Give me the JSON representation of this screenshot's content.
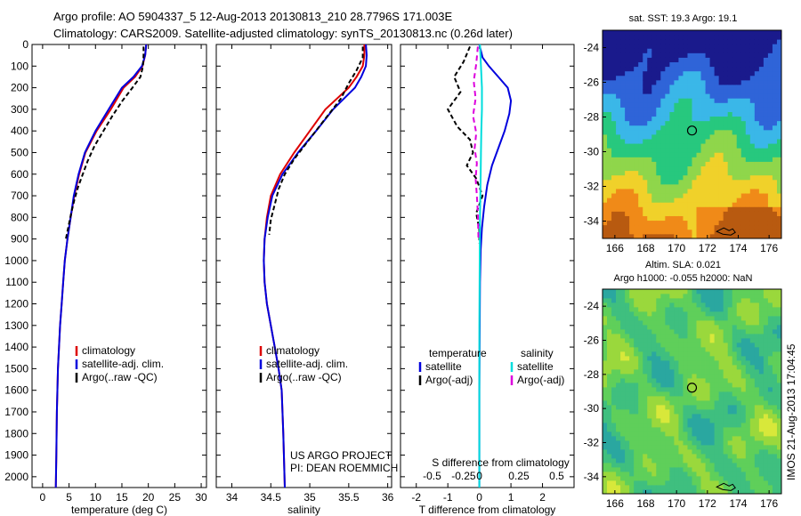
{
  "header": {
    "line1": "Argo profile: AO 5904337_5 12-Aug-2013 20130813_210 28.7796S 171.003E",
    "line2": "Climatology: CARS2009. Satellite-adjusted climatology: synTS_20130813.nc (0.26d later)"
  },
  "side_stamp": "IMOS 21-Aug-2013 17:04:45",
  "colors": {
    "climatology": "#dd0000",
    "satellite": "#0000dd",
    "argo": "#000000",
    "sat_salinity": "#00dddd",
    "argo_salinity": "#dd00dd"
  },
  "chart_data": [
    {
      "type": "line",
      "xlabel": "temperature (deg C)",
      "ylabel": "",
      "xlim": [
        -2,
        31
      ],
      "ylim": [
        2050,
        0
      ],
      "xticks": [
        "0",
        "5",
        "10",
        "15",
        "20",
        "25",
        "30"
      ],
      "xtick_values": [
        0,
        5,
        10,
        15,
        20,
        25,
        30
      ],
      "yticks": [
        "0",
        "100",
        "200",
        "300",
        "400",
        "500",
        "600",
        "700",
        "800",
        "900",
        "1000",
        "1100",
        "1200",
        "1300",
        "1400",
        "1500",
        "1600",
        "1700",
        "1800",
        "1900",
        "2000"
      ],
      "ytick_values": [
        0,
        100,
        200,
        300,
        400,
        500,
        600,
        700,
        800,
        900,
        1000,
        1100,
        1200,
        1300,
        1400,
        1500,
        1600,
        1700,
        1800,
        1900,
        2000
      ],
      "legend": {
        "position": "lower-center",
        "entries": [
          "climatology",
          "satellite-adj. clim.",
          "Argo(..raw -QC)"
        ]
      },
      "series": [
        {
          "name": "climatology",
          "color": "#dd0000",
          "dash": "",
          "x": [
            19.6,
            19.4,
            18.9,
            17.5,
            15.3,
            12.9,
            10.2,
            8.1,
            6.9,
            6.0,
            5.3,
            4.7,
            4.2,
            3.9,
            3.6,
            3.3,
            3.1,
            2.9,
            2.8,
            2.7,
            2.6,
            2.5
          ],
          "y": [
            0,
            50,
            100,
            150,
            200,
            300,
            400,
            500,
            600,
            700,
            800,
            900,
            1000,
            1100,
            1200,
            1300,
            1400,
            1500,
            1600,
            1700,
            1900,
            2050
          ]
        },
        {
          "name": "satellite-adj. clim.",
          "color": "#0000dd",
          "dash": "",
          "x": [
            19.6,
            19.4,
            18.8,
            17.2,
            15.0,
            12.5,
            10.0,
            8.0,
            6.8,
            5.9,
            5.3,
            4.7,
            4.2,
            3.9,
            3.6,
            3.3,
            3.1,
            2.9,
            2.8,
            2.7,
            2.6,
            2.5
          ],
          "y": [
            0,
            50,
            100,
            150,
            200,
            300,
            400,
            500,
            600,
            700,
            800,
            900,
            1000,
            1100,
            1200,
            1300,
            1400,
            1500,
            1600,
            1700,
            1900,
            2050
          ]
        },
        {
          "name": "Argo(..raw -QC)",
          "color": "#000000",
          "dash": "5,3",
          "x": [
            19.1,
            19.1,
            19.0,
            18.5,
            17.0,
            15.1,
            13.2,
            11.5,
            9.8,
            8.5,
            7.6,
            6.7,
            6.0,
            5.4,
            4.9,
            4.4
          ],
          "y": [
            10,
            50,
            100,
            150,
            200,
            260,
            330,
            400,
            470,
            540,
            600,
            660,
            720,
            780,
            840,
            900
          ]
        }
      ]
    },
    {
      "type": "line",
      "xlabel": "salinity",
      "xlim": [
        33.8,
        36.05
      ],
      "ylim": [
        2050,
        0
      ],
      "xticks": [
        "34",
        "34.5",
        "35",
        "35.5",
        "36"
      ],
      "xtick_values": [
        34,
        34.5,
        35,
        35.5,
        36
      ],
      "legend": {
        "position": "lower-center",
        "entries": [
          "climatology",
          "satellite-adj. clim.",
          "Argo(..raw -QC)"
        ]
      },
      "annotations": [
        "US ARGO PROJECT",
        "PI: DEAN ROEMMICH"
      ],
      "series": [
        {
          "name": "climatology",
          "color": "#dd0000",
          "dash": "",
          "x": [
            35.7,
            35.7,
            35.68,
            35.6,
            35.5,
            35.2,
            35.0,
            34.8,
            34.62,
            34.5,
            34.45,
            34.42,
            34.41,
            34.42,
            34.45,
            34.5,
            34.55,
            34.6,
            34.64,
            34.66,
            34.68
          ],
          "y": [
            0,
            50,
            100,
            150,
            200,
            300,
            400,
            500,
            600,
            700,
            800,
            900,
            1000,
            1100,
            1200,
            1300,
            1400,
            1500,
            1600,
            1800,
            2050
          ]
        },
        {
          "name": "satellite-adj. clim.",
          "color": "#0000dd",
          "dash": "",
          "x": [
            35.72,
            35.73,
            35.72,
            35.66,
            35.58,
            35.3,
            35.08,
            34.85,
            34.65,
            34.52,
            34.46,
            34.42,
            34.41,
            34.42,
            34.45,
            34.5,
            34.55,
            34.6,
            34.64,
            34.66,
            34.68
          ],
          "y": [
            0,
            50,
            100,
            150,
            200,
            300,
            400,
            500,
            600,
            700,
            800,
            900,
            1000,
            1100,
            1200,
            1300,
            1400,
            1500,
            1600,
            1800,
            2050
          ]
        },
        {
          "name": "Argo(..raw -QC)",
          "color": "#000000",
          "dash": "5,3",
          "x": [
            35.68,
            35.68,
            35.6,
            35.5,
            35.4,
            35.25,
            35.1,
            34.95,
            34.8,
            34.68,
            34.6,
            34.55,
            34.5,
            34.48
          ],
          "y": [
            10,
            60,
            120,
            180,
            250,
            320,
            390,
            460,
            530,
            600,
            670,
            740,
            810,
            880
          ]
        }
      ]
    },
    {
      "type": "line",
      "xlabel": "T difference from climatology",
      "xlim": [
        -2.5,
        3.0
      ],
      "ylim": [
        2050,
        0
      ],
      "xticks": [
        "-2",
        "-1",
        "0",
        "1",
        "2"
      ],
      "xtick_values": [
        -2,
        -1,
        0,
        1,
        2
      ],
      "secondary_xlabel": "S difference from climatology",
      "secondary_xticks": [
        "-0.5",
        "-0.25",
        "0",
        "0.25",
        "0.5"
      ],
      "legend": {
        "position": "lower-center",
        "temperature_title": "temperature",
        "salinity_title": "salinity",
        "temperature_entries": [
          "satellite",
          "Argo(-adj)"
        ],
        "salinity_entries": [
          "satellite",
          "Argo(-adj)"
        ]
      },
      "series": [
        {
          "name": "temperature satellite",
          "color": "#0000dd",
          "dash": "",
          "x": [
            0.0,
            0.1,
            0.3,
            0.6,
            0.9,
            1.0,
            0.95,
            0.8,
            0.6,
            0.4,
            0.25,
            0.15,
            0.08,
            0.04,
            0.02,
            0.01,
            0.0,
            0.0
          ],
          "y": [
            0,
            60,
            100,
            150,
            200,
            260,
            320,
            400,
            480,
            560,
            650,
            750,
            850,
            950,
            1100,
            1300,
            1600,
            2050
          ]
        },
        {
          "name": "temperature Argo(-adj)",
          "color": "#000000",
          "dash": "5,3",
          "x": [
            -0.3,
            -0.5,
            -0.8,
            -0.6,
            -1.0,
            -0.7,
            -0.3,
            -0.2,
            -0.4,
            -0.1,
            0.1,
            -0.1,
            0.0,
            0.0
          ],
          "y": [
            10,
            80,
            150,
            220,
            300,
            380,
            440,
            500,
            560,
            620,
            700,
            780,
            860,
            920
          ]
        },
        {
          "name": "salinity satellite",
          "color": "#00dddd",
          "dash": "",
          "x": [
            0.02,
            0.05,
            0.08,
            0.08,
            0.06,
            0.05,
            0.04,
            0.03,
            0.02,
            0.01,
            0.0,
            0.0
          ],
          "y": [
            0,
            100,
            200,
            300,
            400,
            500,
            600,
            700,
            800,
            1000,
            1300,
            2050
          ]
        },
        {
          "name": "salinity Argo(-adj)",
          "color": "#dd00dd",
          "dash": "6,4",
          "x": [
            -0.05,
            -0.1,
            -0.18,
            -0.12,
            -0.2,
            -0.1,
            -0.15,
            -0.08,
            -0.12,
            -0.08,
            -0.05,
            -0.03
          ],
          "y": [
            10,
            90,
            170,
            250,
            330,
            410,
            480,
            550,
            620,
            700,
            780,
            900
          ]
        }
      ]
    },
    {
      "type": "heatmap",
      "title": "sat. SST: 19.3 Argo: 19.1",
      "xlim": [
        165.2,
        176.8
      ],
      "ylim": [
        -35,
        -23
      ],
      "xticks": [
        "166",
        "168",
        "170",
        "172",
        "174",
        "176"
      ],
      "xtick_values": [
        166,
        168,
        170,
        172,
        174,
        176
      ],
      "yticks": [
        "-24",
        "-26",
        "-28",
        "-30",
        "-32",
        "-34"
      ],
      "ytick_values": [
        -24,
        -26,
        -28,
        -30,
        -32,
        -34
      ],
      "marker": {
        "lon": 171.0,
        "lat": -28.78
      },
      "palette": [
        "#1a1a8c",
        "#2f64d8",
        "#3ab7e8",
        "#27c87e",
        "#8fd64b",
        "#f0d12a",
        "#f08a18",
        "#b85a10"
      ]
    },
    {
      "type": "heatmap",
      "title": "Altim. SLA: 0.021",
      "subtitle": "Argo h1000: -0.055 h2000: NaN",
      "xlim": [
        165.2,
        176.8
      ],
      "ylim": [
        -35,
        -23
      ],
      "xticks": [
        "166",
        "168",
        "170",
        "172",
        "174",
        "176"
      ],
      "xtick_values": [
        166,
        168,
        170,
        172,
        174,
        176
      ],
      "yticks": [
        "-24",
        "-26",
        "-28",
        "-30",
        "-32",
        "-34"
      ],
      "ytick_values": [
        -24,
        -26,
        -28,
        -30,
        -32,
        -34
      ],
      "marker": {
        "lon": 171.0,
        "lat": -28.78
      },
      "palette": [
        "#2aa7a0",
        "#3fbf7f",
        "#5fcf5a",
        "#9ad83c",
        "#d8e83a"
      ]
    }
  ]
}
